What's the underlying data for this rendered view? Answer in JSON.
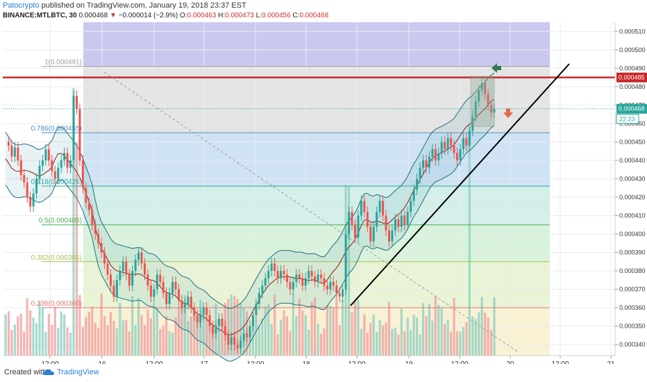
{
  "header": {
    "author": "Patocrypto",
    "published_text": "published on TradingView.com, January 19, 2018 23:37 EST",
    "symbol": "BINANCE:MTLBTC, 30",
    "last": "0.000468",
    "change": "−0.000014 (−2.9%)",
    "open_label": "O:",
    "open": "0.000463",
    "high_label": "H:",
    "high": "0.000473",
    "low_label": "L:",
    "low": "0.000456",
    "close_label": "C:",
    "close": "0.000468"
  },
  "footer": {
    "created_with": "Created with",
    "brand": "TradingView"
  },
  "colors": {
    "resistance_line": "#c62828",
    "trend_line": "#000000",
    "bb_line": "#1f6f7a",
    "basis_line": "#8b1a1a",
    "up_candle": "#26a69a",
    "down_candle": "#ef5350",
    "price_badge": "#26a69a",
    "resistance_badge": "#c62828",
    "up_arrow": "#2e7d52",
    "down_arrow": "#e8674a"
  },
  "chart_data": {
    "type": "candlestick",
    "x_ticks": [
      "12:00",
      "16",
      "12:00",
      "17",
      "12:00",
      "18",
      "12:00",
      "19",
      "12:00",
      "20",
      "12:00",
      "21"
    ],
    "y_ticks": [
      "0.000340",
      "0.000350",
      "0.000360",
      "0.000370",
      "0.000380",
      "0.000390",
      "0.000400",
      "0.000410",
      "0.000420",
      "0.000430",
      "0.000440",
      "0.000450",
      "0.000460",
      "0.000470",
      "0.000480",
      "0.000490",
      "0.000500",
      "0.000510"
    ],
    "ylim": [
      0.000334,
      0.000515
    ],
    "fib_levels": [
      {
        "label": "1(0.000491)",
        "ratio": 1,
        "price": 0.000491
      },
      {
        "label": "0.786(0.000455)",
        "ratio": 0.786,
        "price": 0.000455
      },
      {
        "label": "0.618(0.000426)",
        "ratio": 0.618,
        "price": 0.000426
      },
      {
        "label": "0.5(0.000405)",
        "ratio": 0.5,
        "price": 0.000405
      },
      {
        "label": "0.382(0.000385)",
        "ratio": 0.382,
        "price": 0.000385
      },
      {
        "label": "0.236(0.000360)",
        "ratio": 0.236,
        "price": 0.00036
      }
    ],
    "resistance": {
      "price": 0.000485,
      "label": "0.000485"
    },
    "last_price": {
      "price": 0.000468,
      "label": "0.000468",
      "countdown": "22:23"
    },
    "close_series": [
      0.00045,
      0.000448,
      0.000442,
      0.000447,
      0.00044,
      0.000432,
      0.000428,
      0.00042,
      0.000415,
      0.000422,
      0.00043,
      0.000437,
      0.00044,
      0.000446,
      0.00044,
      0.000434,
      0.00043,
      0.000436,
      0.00044,
      0.000444,
      0.000436,
      0.00044,
      0.000475,
      0.000468,
      0.00044,
      0.000425,
      0.000417,
      0.000413,
      0.000405,
      0.0004,
      0.000395,
      0.00039,
      0.000384,
      0.000378,
      0.000372,
      0.000366,
      0.000375,
      0.00038,
      0.000385,
      0.000378,
      0.000372,
      0.00038,
      0.000386,
      0.00039,
      0.000384,
      0.000378,
      0.000372,
      0.000366,
      0.00037,
      0.000378,
      0.000374,
      0.000368,
      0.000362,
      0.000368,
      0.000374,
      0.00037,
      0.000364,
      0.00036,
      0.000362,
      0.000366,
      0.00036,
      0.000356,
      0.000352,
      0.000356,
      0.00036,
      0.000356,
      0.00035,
      0.000346,
      0.00035,
      0.000354,
      0.00035,
      0.000345,
      0.00034,
      0.000344,
      0.00034,
      0.000338,
      0.000342,
      0.000346,
      0.000344,
      0.00035,
      0.000356,
      0.000362,
      0.000368,
      0.000372,
      0.000376,
      0.00038,
      0.000384,
      0.00038,
      0.000376,
      0.00038,
      0.000378,
      0.000374,
      0.00037,
      0.000374,
      0.000378,
      0.000376,
      0.000372,
      0.000376,
      0.00038,
      0.000377,
      0.000374,
      0.000378,
      0.000376,
      0.000372,
      0.00037,
      0.000374,
      0.000372,
      0.000368,
      0.000366,
      0.00037,
      0.0004,
      0.000412,
      0.000405,
      0.000398,
      0.00041,
      0.000418,
      0.000412,
      0.000404,
      0.000396,
      0.000404,
      0.000412,
      0.000418,
      0.00041,
      0.000402,
      0.000396,
      0.000402,
      0.000408,
      0.000404,
      0.00041,
      0.000405,
      0.000412,
      0.000418,
      0.000424,
      0.00043,
      0.000436,
      0.00044,
      0.000436,
      0.000442,
      0.000446,
      0.00044,
      0.000444,
      0.00045,
      0.000446,
      0.000452,
      0.000448,
      0.000444,
      0.00044,
      0.000446,
      0.000452,
      0.000448,
      0.000456,
      0.000464,
      0.000472,
      0.000478,
      0.000482,
      0.000476,
      0.00047,
      0.000466,
      0.000468
    ]
  }
}
